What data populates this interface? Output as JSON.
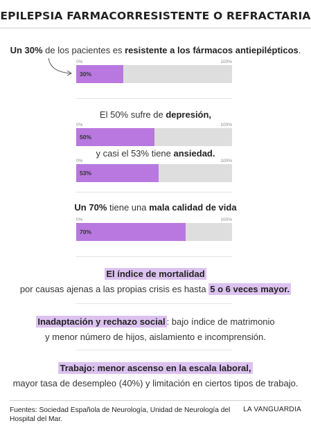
{
  "title": "EPILEPSIA FARMACORRESISTENTE O REFRACTARIA",
  "chart_data": {
    "type": "bar",
    "xlim": [
      0,
      100
    ],
    "tick_min": "0%",
    "tick_max": "100%",
    "bar_color": "#b978e0",
    "track_color": "#dedede",
    "bars": [
      {
        "value": 30,
        "label": "30%",
        "text": [
          {
            "t": "Un 30%",
            "b": true
          },
          {
            "t": " de los pacientes es ",
            "b": false
          },
          {
            "t": "resistente a los fármacos antiepilépticos",
            "b": true
          },
          {
            "t": ".",
            "b": false
          }
        ]
      },
      {
        "value": 50,
        "label": "50%",
        "text": [
          {
            "t": "El 50% sufre de ",
            "b": false
          },
          {
            "t": "depresión,",
            "b": true
          }
        ]
      },
      {
        "value": 53,
        "label": "53%",
        "text": [
          {
            "t": "y casi el 53% tiene ",
            "b": false
          },
          {
            "t": "ansiedad.",
            "b": true
          }
        ]
      },
      {
        "value": 70,
        "label": "70%",
        "text": [
          {
            "t": "Un 70%",
            "b": true
          },
          {
            "t": " tiene una ",
            "b": false
          },
          {
            "t": "mala calidad de vida",
            "b": true
          }
        ]
      }
    ]
  },
  "facts": [
    {
      "lines": [
        [
          {
            "t": "El índice de mortalidad",
            "hl": true
          }
        ],
        [
          {
            "t": "por causas ajenas a las propias crisis es hasta ",
            "hl": false
          },
          {
            "t": "5 o 6 veces mayor.",
            "hl": true
          }
        ]
      ]
    },
    {
      "lines": [
        [
          {
            "t": "Inadaptación y rechazo social",
            "hl": true
          },
          {
            "t": ": bajo índice de matrimonio",
            "hl": false
          }
        ],
        [
          {
            "t": "y menor número de hijos, aislamiento e incomprensión.",
            "hl": false
          }
        ]
      ]
    },
    {
      "lines": [
        [
          {
            "t": "Trabajo: menor ascenso en la escala laboral,",
            "hl": true
          }
        ],
        [
          {
            "t": "mayor tasa de desempleo (40%) y limitación en ciertos tipos de trabajo.",
            "hl": false
          }
        ]
      ]
    }
  ],
  "footer": {
    "sources": "Fuentes: Sociedad Española de Neurología, Unidad de Neurología del Hospital del Mar.",
    "brand": "LA VANGUARDIA"
  },
  "colors": {
    "highlight": "#dcc2f0",
    "accent": "#b978e0"
  }
}
